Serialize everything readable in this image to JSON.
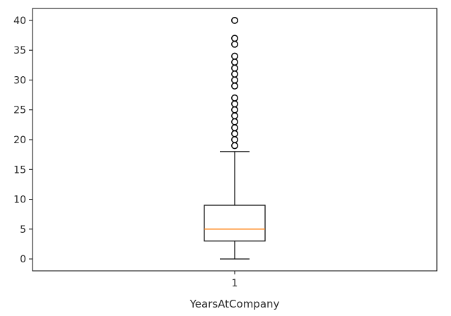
{
  "chart_data": {
    "type": "boxplot",
    "categories": [
      "1"
    ],
    "xlabel": "YearsAtCompany",
    "ylabel": "",
    "title": "",
    "ylim": [
      -2,
      42
    ],
    "yticks": [
      0,
      5,
      10,
      15,
      20,
      25,
      30,
      35,
      40
    ],
    "grid": false,
    "series": [
      {
        "whisker_low": 0,
        "q1": 3,
        "median": 5,
        "q3": 9,
        "whisker_high": 18,
        "outliers": [
          19,
          20,
          21,
          22,
          23,
          24,
          25,
          26,
          27,
          29,
          30,
          31,
          32,
          33,
          34,
          36,
          37,
          40
        ]
      }
    ],
    "colors": {
      "box": "#000000",
      "median": "#ff7f0e",
      "outlier": "#000000"
    }
  }
}
